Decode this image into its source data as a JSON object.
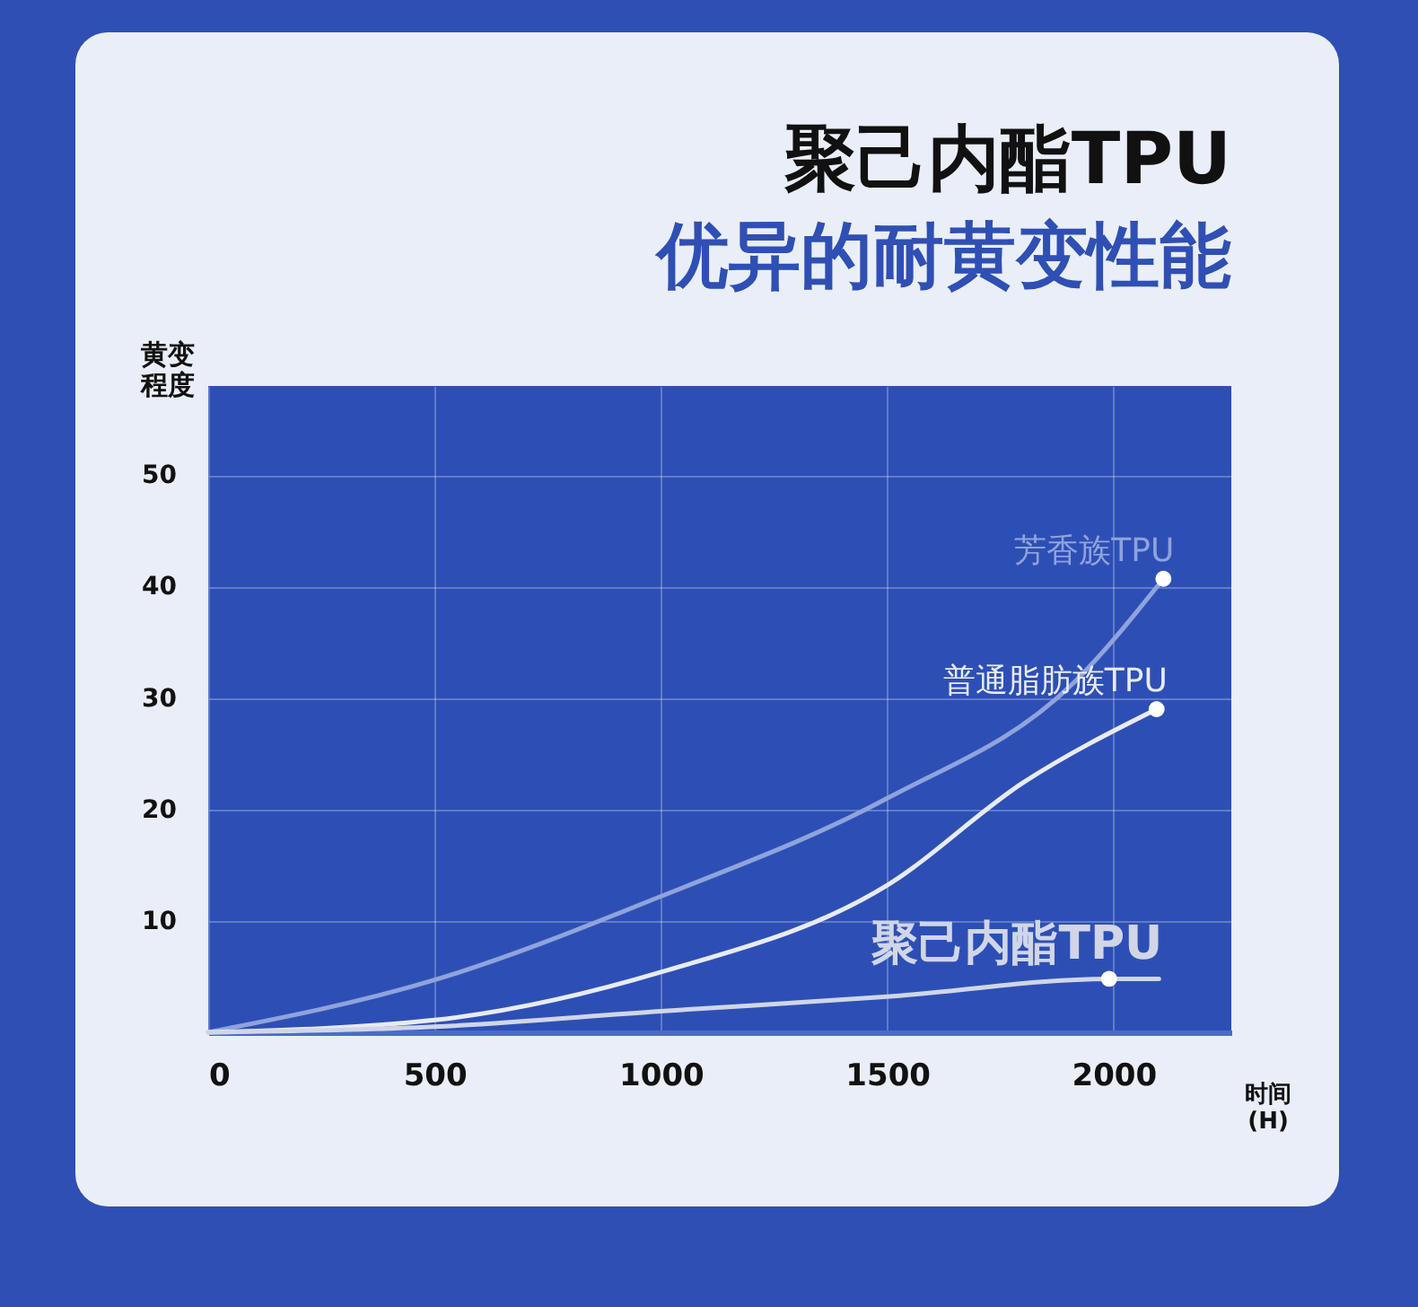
{
  "chart_data": {
    "type": "line",
    "title": "聚己内酯TPU",
    "subtitle": "优异的耐黄变性能",
    "xlabel": "时间 (H)",
    "ylabel": "黄变程度",
    "xlim": [
      0,
      2260
    ],
    "xticks": [
      0,
      500,
      1000,
      1500,
      2000
    ],
    "ylim": [
      0,
      58
    ],
    "yticks": [
      10,
      20,
      30,
      40,
      50
    ],
    "grid": true,
    "series": [
      {
        "name": "芳香族TPU",
        "color": "#8fa3dc",
        "x": [
          0,
          500,
          1000,
          1500,
          1915,
          2110
        ],
        "values": [
          0,
          4.7,
          12.2,
          21,
          31.5,
          40.7
        ]
      },
      {
        "name": "普通脂肪族TPU",
        "color": "#e8ebf4",
        "x": [
          0,
          500,
          1000,
          1500,
          1800,
          2095
        ],
        "values": [
          0,
          1.1,
          5.4,
          13.2,
          22.4,
          29
        ]
      },
      {
        "name": "聚己内酯TPU",
        "color": "#d0d6e8",
        "x": [
          0,
          500,
          1000,
          1500,
          1990,
          2100
        ],
        "values": [
          0,
          0.5,
          1.9,
          3.2,
          4.8,
          4.8
        ]
      },
      {
        "type": "scatter",
        "marker": "circle",
        "color": "#ffffff",
        "x": [
          2110,
          2095,
          1990
        ],
        "values": [
          40.7,
          29,
          4.8
        ]
      }
    ]
  }
}
